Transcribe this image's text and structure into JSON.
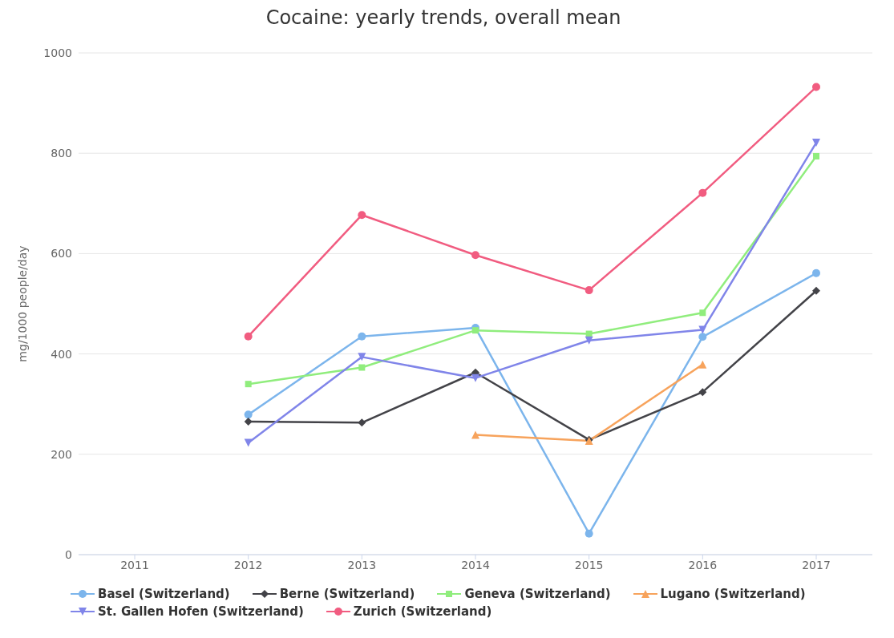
{
  "chart_data": {
    "type": "line",
    "title": "Cocaine: yearly trends, overall mean",
    "ylabel": "mg/1000 people/day",
    "categories": [
      "2011",
      "2012",
      "2013",
      "2014",
      "2015",
      "2016",
      "2017"
    ],
    "series": [
      {
        "name": "Basel (Switzerland)",
        "color": "#7cb5ec",
        "marker": "circle",
        "values": [
          null,
          279,
          435,
          452,
          42,
          434,
          561
        ]
      },
      {
        "name": "Berne (Switzerland)",
        "color": "#434348",
        "marker": "diamond",
        "values": [
          null,
          265,
          263,
          363,
          229,
          324,
          526
        ]
      },
      {
        "name": "Geneva (Switzerland)",
        "color": "#90ed7d",
        "marker": "square",
        "values": [
          null,
          340,
          373,
          447,
          440,
          482,
          794
        ]
      },
      {
        "name": "Lugano (Switzerland)",
        "color": "#f7a35c",
        "marker": "triangle",
        "values": [
          null,
          null,
          null,
          239,
          227,
          379,
          null
        ]
      },
      {
        "name": "St. Gallen Hofen (Switzerland)",
        "color": "#8085e9",
        "marker": "triangle-down",
        "values": [
          null,
          223,
          394,
          352,
          427,
          448,
          821
        ]
      },
      {
        "name": "Zurich (Switzerland)",
        "color": "#f15c80",
        "marker": "circle",
        "values": [
          null,
          435,
          677,
          597,
          527,
          721,
          932
        ]
      }
    ],
    "ylim": [
      0,
      1000
    ],
    "yticks": [
      0,
      200,
      400,
      600,
      800,
      1000
    ],
    "grid": "y",
    "legend": "bottom",
    "line_style": "solid"
  }
}
